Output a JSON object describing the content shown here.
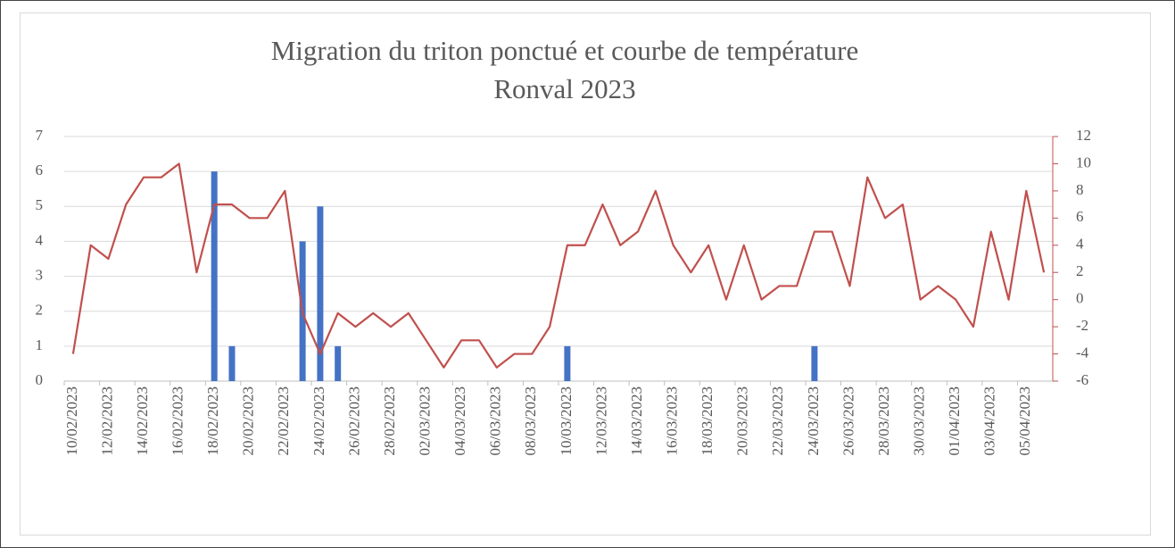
{
  "chart_data": {
    "type": "bar-line",
    "title": "Migration du triton ponctué et courbe de température",
    "subtitle": "Ronval 2023",
    "categories": [
      "10/02/2023",
      null,
      "12/02/2023",
      null,
      "14/02/2023",
      null,
      "16/02/2023",
      null,
      "18/02/2023",
      null,
      "20/02/2023",
      null,
      "22/02/2023",
      null,
      "24/02/2023",
      null,
      "26/02/2023",
      null,
      "28/02/2023",
      null,
      "02/03/2023",
      null,
      "04/03/2023",
      null,
      "06/03/2023",
      null,
      "08/03/2023",
      null,
      "10/03/2023",
      null,
      "12/03/2023",
      null,
      "14/03/2023",
      null,
      "16/03/2023",
      null,
      "18/03/2023",
      null,
      "20/03/2023",
      null,
      "22/03/2023",
      null,
      "24/03/2023",
      null,
      "26/03/2023",
      null,
      "28/03/2023",
      null,
      "30/03/2023",
      null,
      "01/04/2023",
      null,
      "03/04/2023",
      null,
      "05/04/2023",
      null
    ],
    "series": [
      {
        "type": "bar",
        "color": "#4472c4",
        "values": [
          0,
          0,
          0,
          0,
          0,
          0,
          0,
          0,
          6,
          1,
          0,
          0,
          0,
          4,
          5,
          1,
          0,
          0,
          0,
          0,
          0,
          0,
          0,
          0,
          0,
          0,
          0,
          0,
          1,
          0,
          0,
          0,
          0,
          0,
          0,
          0,
          0,
          0,
          0,
          0,
          0,
          0,
          1,
          0,
          0,
          0,
          0,
          0,
          0,
          0,
          0,
          0,
          0,
          0,
          0,
          0
        ]
      },
      {
        "type": "line",
        "axis": "y2",
        "color": "#c0504d",
        "values": [
          -4,
          4,
          3,
          7,
          9,
          9,
          10,
          2,
          7,
          7,
          6,
          6,
          8,
          -1,
          -4,
          -1,
          -2,
          -1,
          -2,
          -1,
          -3,
          -5,
          -3,
          -3,
          -5,
          -4,
          -4,
          -2,
          4,
          4,
          7,
          4,
          5,
          8,
          4,
          2,
          4,
          0,
          4,
          0,
          1,
          1,
          5,
          5,
          1,
          9,
          6,
          7,
          0,
          1,
          0,
          -2,
          5,
          0,
          8,
          2
        ]
      }
    ],
    "ylim": [
      0,
      7
    ],
    "yticks": [
      0,
      1,
      2,
      3,
      4,
      5,
      6,
      7
    ],
    "y2lim": [
      -6,
      12
    ],
    "y2ticks": [
      -6,
      -4,
      -2,
      0,
      2,
      4,
      6,
      8,
      10,
      12
    ],
    "grid": true
  }
}
